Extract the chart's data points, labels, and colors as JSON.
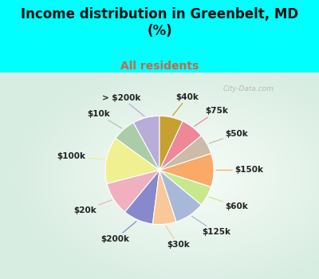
{
  "title": "Income distribution in Greenbelt, MD\n(%)",
  "subtitle": "All residents",
  "background_color": "#00FFFF",
  "watermark": "City-Data.com",
  "labels": [
    "> $200k",
    "$10k",
    "$100k",
    "$20k",
    "$200k",
    "$30k",
    "$125k",
    "$60k",
    "$150k",
    "$50k",
    "$75k",
    "$40k"
  ],
  "values": [
    8,
    7,
    14,
    10,
    9,
    7,
    9,
    6,
    10,
    6,
    7,
    7
  ],
  "colors": [
    "#b8acd8",
    "#aacca8",
    "#f0f090",
    "#f0b0c0",
    "#8888cc",
    "#f8c898",
    "#a8b8d8",
    "#c8e890",
    "#f8aa66",
    "#ccbba8",
    "#ee8898",
    "#c8a030"
  ],
  "startangle": 90,
  "title_fontsize": 12,
  "subtitle_fontsize": 10,
  "label_fontsize": 7.5
}
